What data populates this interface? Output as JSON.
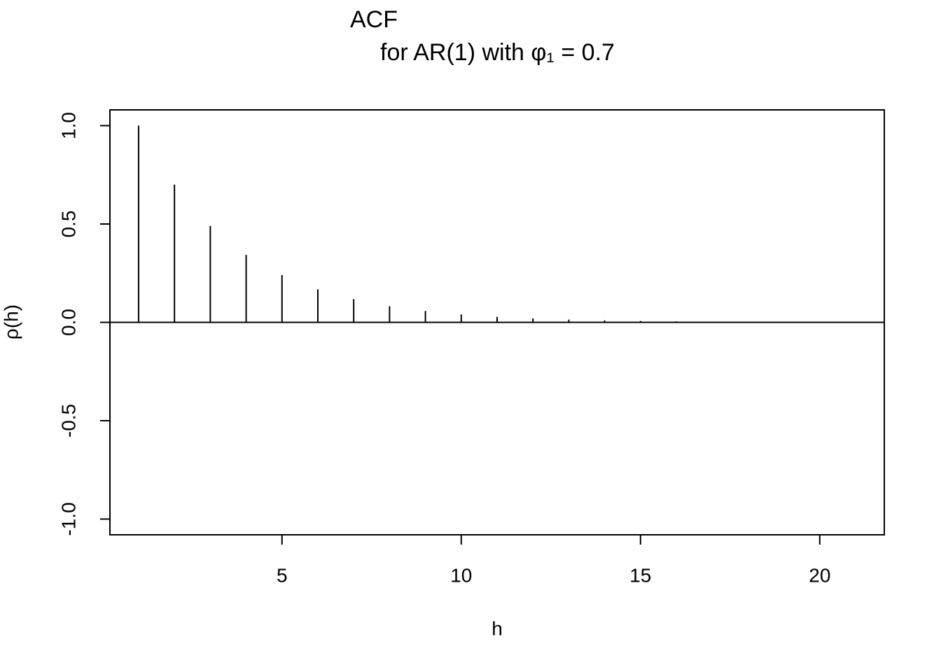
{
  "chart_data": {
    "type": "stem",
    "title": "ACF",
    "subtitle": "for AR(1) with φ₁ = 0.7",
    "x_label": "h",
    "y_label": "ρ(h)",
    "x": [
      1,
      2,
      3,
      4,
      5,
      6,
      7,
      8,
      9,
      10,
      11,
      12,
      13,
      14,
      15,
      16,
      17,
      18,
      19,
      20,
      21
    ],
    "values": [
      1,
      0.7,
      0.49,
      0.343,
      0.24,
      0.168,
      0.118,
      0.082,
      0.058,
      0.04,
      0.028,
      0.02,
      0.014,
      0.01,
      0.007,
      0.005,
      0.003,
      0.002,
      0.002,
      0.001,
      0.001
    ],
    "color": "#000000",
    "hline": 0,
    "xlim": [
      0.2,
      21.8
    ],
    "ylim": [
      -1.08,
      1.08
    ],
    "xticks": [
      5,
      10,
      15,
      20
    ],
    "yticks": [
      {
        "value": -1,
        "label": "-1.0"
      },
      {
        "value": -0.5,
        "label": "-0.5"
      },
      {
        "value": 0,
        "label": "0.0"
      },
      {
        "value": 0.5,
        "label": "0.5"
      },
      {
        "value": 1,
        "label": "1.0"
      }
    ]
  }
}
